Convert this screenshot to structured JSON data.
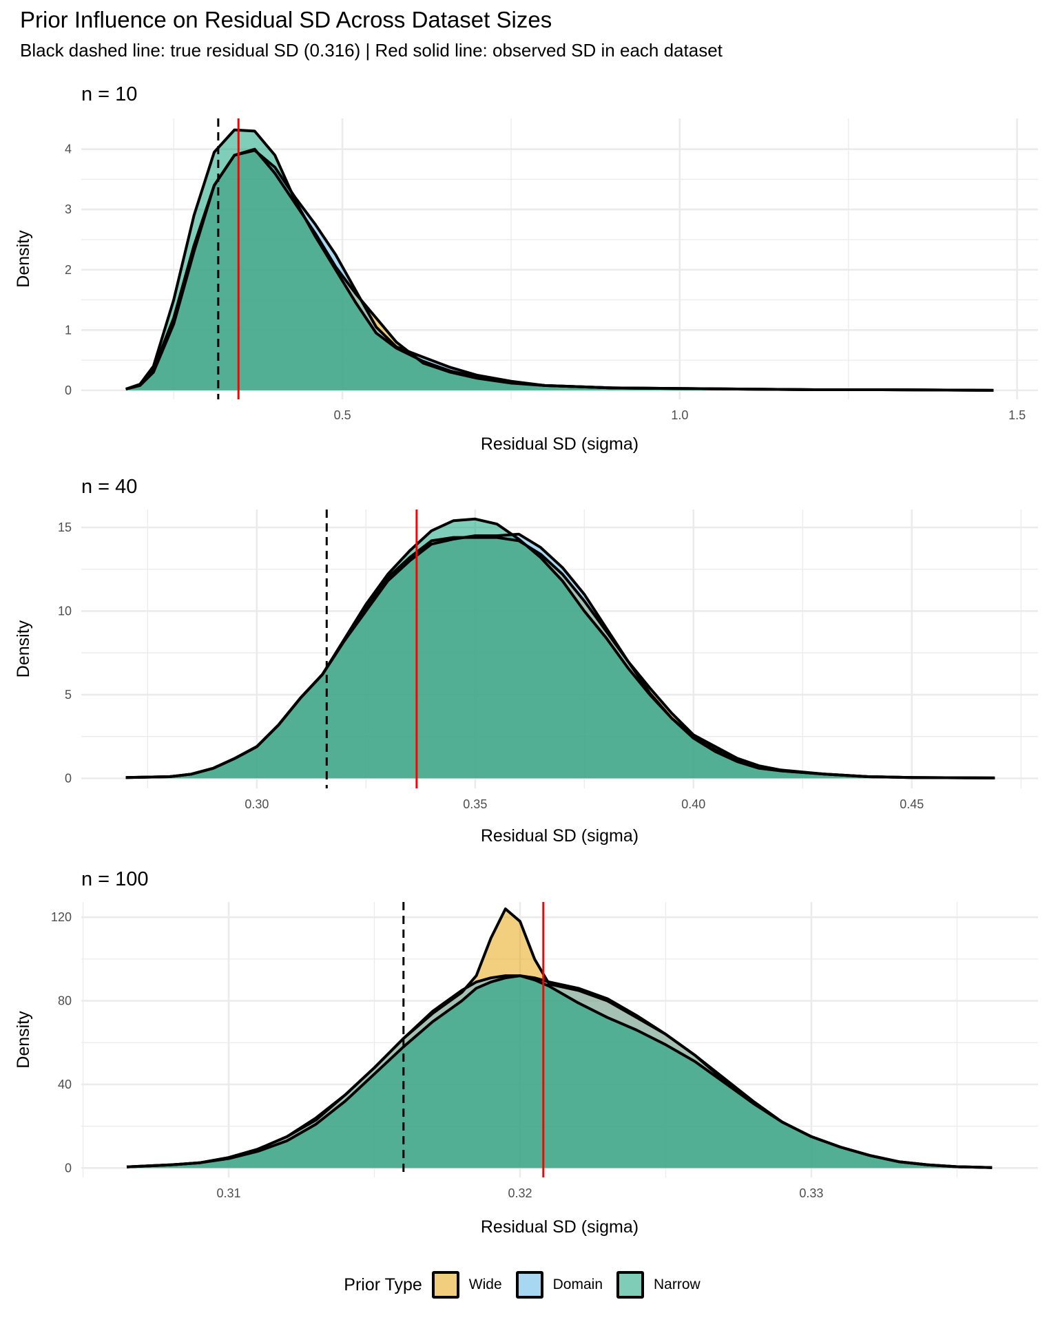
{
  "title": "Prior Influence on Residual SD Across Dataset Sizes",
  "subtitle": "Black dashed line: true residual SD (0.316) | Red solid line: observed SD in each dataset",
  "legend": {
    "title": "Prior Type",
    "items": [
      {
        "label": "Wide",
        "color": "#E69F00"
      },
      {
        "label": "Domain",
        "color": "#56B4E9"
      },
      {
        "label": "Narrow",
        "color": "#009E73"
      }
    ]
  },
  "chart_data": [
    {
      "type": "area",
      "panel": "n = 10",
      "xlabel": "Residual SD (sigma)",
      "ylabel": "Density",
      "xlim": [
        0.113,
        1.531
      ],
      "ylim": [
        -0.15,
        4.51
      ],
      "xticks": [
        0.5,
        1.0,
        1.5
      ],
      "xtick_labels": [
        "0.5",
        "1.0",
        "1.5"
      ],
      "xminor": [
        0.25,
        0.75,
        1.25
      ],
      "yticks": [
        0,
        1,
        2,
        3,
        4
      ],
      "yminor": [
        0.5,
        1.5,
        2.5,
        3.5
      ],
      "true_sd": 0.316,
      "observed_sd": 0.346,
      "series": [
        {
          "name": "Wide",
          "x": [
            0.179,
            0.2,
            0.22,
            0.25,
            0.28,
            0.31,
            0.34,
            0.37,
            0.4,
            0.43,
            0.46,
            0.49,
            0.52,
            0.55,
            0.58,
            0.62,
            0.66,
            0.7,
            0.75,
            0.8,
            0.9,
            1.0,
            1.1,
            1.2,
            1.3,
            1.465
          ],
          "y": [
            0.02,
            0.1,
            0.35,
            1.2,
            2.4,
            3.4,
            3.9,
            4.0,
            3.6,
            3.1,
            2.6,
            2.05,
            1.6,
            1.2,
            0.8,
            0.45,
            0.3,
            0.2,
            0.12,
            0.08,
            0.04,
            0.03,
            0.02,
            0.01,
            0.01,
            0.0
          ]
        },
        {
          "name": "Domain",
          "x": [
            0.179,
            0.2,
            0.22,
            0.25,
            0.28,
            0.31,
            0.34,
            0.37,
            0.4,
            0.43,
            0.46,
            0.49,
            0.52,
            0.55,
            0.58,
            0.62,
            0.66,
            0.7,
            0.75,
            0.8,
            0.9,
            1.0,
            1.1,
            1.2,
            1.3,
            1.465
          ],
          "y": [
            0.02,
            0.08,
            0.3,
            1.1,
            2.3,
            3.4,
            3.9,
            3.98,
            3.7,
            3.2,
            2.75,
            2.25,
            1.65,
            1.05,
            0.72,
            0.55,
            0.38,
            0.25,
            0.15,
            0.08,
            0.04,
            0.03,
            0.02,
            0.01,
            0.01,
            0.0
          ]
        },
        {
          "name": "Narrow",
          "x": [
            0.179,
            0.2,
            0.22,
            0.25,
            0.28,
            0.31,
            0.34,
            0.37,
            0.4,
            0.43,
            0.46,
            0.49,
            0.52,
            0.55,
            0.58,
            0.62,
            0.66,
            0.7,
            0.75,
            0.8,
            0.9,
            1.0,
            1.1,
            1.2,
            1.3,
            1.465
          ],
          "y": [
            0.02,
            0.1,
            0.4,
            1.5,
            2.9,
            3.95,
            4.32,
            4.3,
            3.9,
            3.15,
            2.55,
            2.0,
            1.45,
            0.95,
            0.7,
            0.48,
            0.32,
            0.22,
            0.13,
            0.08,
            0.04,
            0.03,
            0.02,
            0.01,
            0.01,
            0.0
          ]
        }
      ]
    },
    {
      "type": "area",
      "panel": "n = 40",
      "xlabel": "Residual SD (sigma)",
      "ylabel": "Density",
      "xlim": [
        0.2598,
        0.4789
      ],
      "ylim": [
        -0.6,
        16.07
      ],
      "xticks": [
        0.3,
        0.35,
        0.4,
        0.45
      ],
      "xtick_labels": [
        "0.30",
        "0.35",
        "0.40",
        "0.45"
      ],
      "xminor": [
        0.275,
        0.325,
        0.375,
        0.425,
        0.475
      ],
      "yticks": [
        0,
        5,
        10,
        15
      ],
      "yminor": [
        2.5,
        7.5,
        12.5
      ],
      "true_sd": 0.316,
      "observed_sd": 0.3366,
      "series": [
        {
          "name": "Wide",
          "x": [
            0.27,
            0.28,
            0.285,
            0.29,
            0.295,
            0.3,
            0.305,
            0.31,
            0.315,
            0.32,
            0.325,
            0.33,
            0.335,
            0.34,
            0.345,
            0.35,
            0.355,
            0.36,
            0.365,
            0.37,
            0.375,
            0.38,
            0.385,
            0.39,
            0.395,
            0.4,
            0.405,
            0.41,
            0.415,
            0.42,
            0.43,
            0.44,
            0.45,
            0.469
          ],
          "y": [
            0.05,
            0.1,
            0.25,
            0.6,
            1.2,
            1.9,
            3.2,
            4.8,
            6.2,
            8.2,
            10.2,
            12.0,
            13.2,
            14.2,
            14.4,
            14.4,
            14.4,
            14.2,
            13.4,
            12.2,
            10.6,
            8.8,
            7.0,
            5.4,
            3.9,
            2.6,
            1.9,
            1.2,
            0.75,
            0.5,
            0.25,
            0.1,
            0.05,
            0.02
          ]
        },
        {
          "name": "Domain",
          "x": [
            0.27,
            0.28,
            0.285,
            0.29,
            0.295,
            0.3,
            0.305,
            0.31,
            0.315,
            0.32,
            0.325,
            0.33,
            0.335,
            0.34,
            0.345,
            0.35,
            0.355,
            0.36,
            0.365,
            0.37,
            0.375,
            0.38,
            0.385,
            0.39,
            0.395,
            0.4,
            0.405,
            0.41,
            0.415,
            0.42,
            0.43,
            0.44,
            0.45,
            0.469
          ],
          "y": [
            0.05,
            0.1,
            0.25,
            0.6,
            1.2,
            1.9,
            3.2,
            4.8,
            6.2,
            8.2,
            10.0,
            11.8,
            13.0,
            14.0,
            14.3,
            14.5,
            14.5,
            14.6,
            13.8,
            12.6,
            11.0,
            9.0,
            7.0,
            5.1,
            3.6,
            2.4,
            1.6,
            1.0,
            0.6,
            0.45,
            0.25,
            0.1,
            0.05,
            0.02
          ]
        },
        {
          "name": "Narrow",
          "x": [
            0.27,
            0.28,
            0.285,
            0.29,
            0.295,
            0.3,
            0.305,
            0.31,
            0.315,
            0.32,
            0.325,
            0.33,
            0.335,
            0.34,
            0.345,
            0.35,
            0.355,
            0.36,
            0.365,
            0.37,
            0.375,
            0.38,
            0.385,
            0.39,
            0.395,
            0.4,
            0.405,
            0.41,
            0.415,
            0.42,
            0.43,
            0.44,
            0.45,
            0.469
          ],
          "y": [
            0.05,
            0.1,
            0.25,
            0.6,
            1.2,
            1.9,
            3.2,
            4.8,
            6.2,
            8.3,
            10.4,
            12.2,
            13.6,
            14.8,
            15.4,
            15.5,
            15.2,
            14.3,
            13.2,
            11.8,
            10.0,
            8.4,
            6.6,
            5.0,
            3.6,
            2.5,
            1.7,
            1.1,
            0.7,
            0.45,
            0.25,
            0.1,
            0.05,
            0.02
          ]
        }
      ]
    },
    {
      "type": "area",
      "panel": "n = 100",
      "xlabel": "Residual SD (sigma)",
      "ylabel": "Density",
      "xlim": [
        0.30494,
        0.33778
      ],
      "ylim": [
        -4.5,
        127.3
      ],
      "xticks": [
        0.31,
        0.32,
        0.33
      ],
      "xtick_labels": [
        "0.31",
        "0.32",
        "0.33"
      ],
      "xminor": [
        0.305,
        0.315,
        0.325,
        0.335
      ],
      "yticks": [
        0,
        40,
        80,
        120
      ],
      "yminor": [
        20,
        60,
        100
      ],
      "true_sd": 0.316,
      "observed_sd": 0.3208,
      "series": [
        {
          "name": "Wide",
          "x": [
            0.3065,
            0.308,
            0.309,
            0.31,
            0.311,
            0.312,
            0.313,
            0.314,
            0.315,
            0.316,
            0.317,
            0.318,
            0.3185,
            0.319,
            0.3195,
            0.32,
            0.3205,
            0.321,
            0.322,
            0.323,
            0.324,
            0.325,
            0.326,
            0.327,
            0.328,
            0.329,
            0.33,
            0.331,
            0.332,
            0.333,
            0.334,
            0.335,
            0.3362
          ],
          "y": [
            0.5,
            1.5,
            2.5,
            5,
            9,
            15,
            24,
            35,
            48,
            62,
            74,
            84,
            92,
            110,
            124,
            118,
            100,
            88,
            85,
            80,
            72,
            64,
            54,
            42,
            31,
            22,
            15,
            10,
            6,
            3,
            1.5,
            0.6,
            0.2
          ]
        },
        {
          "name": "Domain",
          "x": [
            0.3065,
            0.308,
            0.309,
            0.31,
            0.311,
            0.312,
            0.313,
            0.314,
            0.315,
            0.316,
            0.317,
            0.318,
            0.3185,
            0.319,
            0.3195,
            0.32,
            0.3205,
            0.321,
            0.322,
            0.323,
            0.324,
            0.325,
            0.326,
            0.327,
            0.328,
            0.329,
            0.33,
            0.331,
            0.332,
            0.333,
            0.334,
            0.335,
            0.3362
          ],
          "y": [
            0.5,
            1.5,
            2.5,
            5,
            9,
            15,
            23,
            35,
            48,
            62,
            75,
            85,
            89,
            91,
            92,
            92,
            91,
            89,
            86,
            81,
            73,
            64,
            54,
            43,
            32,
            22,
            15,
            10,
            6,
            3,
            1.5,
            0.6,
            0.2
          ]
        },
        {
          "name": "Narrow",
          "x": [
            0.3065,
            0.308,
            0.309,
            0.31,
            0.311,
            0.312,
            0.313,
            0.314,
            0.315,
            0.316,
            0.317,
            0.318,
            0.3185,
            0.319,
            0.3195,
            0.32,
            0.3205,
            0.321,
            0.322,
            0.323,
            0.324,
            0.325,
            0.326,
            0.327,
            0.328,
            0.329,
            0.33,
            0.331,
            0.332,
            0.333,
            0.334,
            0.335,
            0.3362
          ],
          "y": [
            0.5,
            1.5,
            2.5,
            4.5,
            8,
            13,
            21,
            32,
            45,
            58,
            70,
            80,
            86,
            89,
            91,
            92,
            90,
            87,
            79,
            72,
            66,
            59,
            51,
            41,
            31,
            22,
            15,
            10,
            6,
            3,
            1.5,
            0.6,
            0.2
          ]
        }
      ]
    }
  ]
}
